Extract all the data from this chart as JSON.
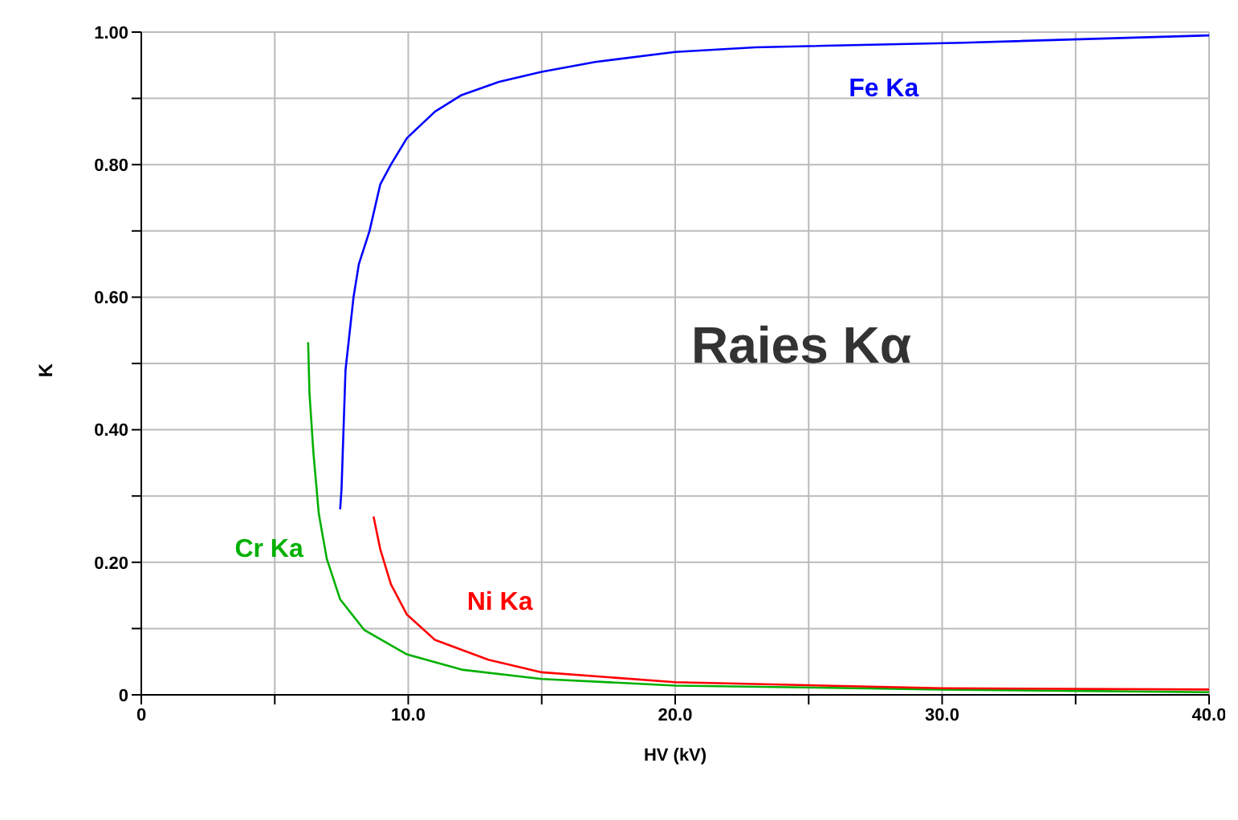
{
  "chart_data": {
    "type": "line",
    "xlabel": "HV (kV)",
    "ylabel": "K",
    "annotations": [
      "Raies Kα"
    ],
    "xlim": [
      0,
      40
    ],
    "ylim": [
      0,
      1
    ],
    "xticks": [
      0,
      {
        "value": 5,
        "label": null
      },
      {
        "value": 10,
        "label": "10.0"
      },
      {
        "value": 15,
        "label": null
      },
      {
        "value": 20,
        "label": "20.0"
      },
      {
        "value": 25,
        "label": null
      },
      {
        "value": 30,
        "label": "30.0"
      },
      {
        "value": 35,
        "label": null
      },
      {
        "value": 40,
        "label": "40.0"
      }
    ],
    "yticks": [
      0,
      {
        "value": 0.1,
        "label": null
      },
      {
        "value": 0.2,
        "label": "0.20"
      },
      {
        "value": 0.3,
        "label": null
      },
      {
        "value": 0.4,
        "label": "0.40"
      },
      {
        "value": 0.5,
        "label": null
      },
      {
        "value": 0.6,
        "label": "0.60"
      },
      {
        "value": 0.7,
        "label": null
      },
      {
        "value": 0.8,
        "label": "0.80"
      },
      {
        "value": 0.9,
        "label": null
      },
      {
        "value": 1,
        "label": "1.00"
      }
    ],
    "grid": true,
    "legend": false,
    "marker": "none",
    "line_style": "solid",
    "series": [
      {
        "name": "Fe Ka",
        "color": "#0000ff",
        "x": [
          7.45,
          7.5,
          7.65,
          7.95,
          8.15,
          8.55,
          8.95,
          9.35,
          9.95,
          11,
          12,
          13.4,
          15,
          17,
          20,
          23,
          30.8,
          40
        ],
        "values": [
          0.28,
          0.31,
          0.49,
          0.6,
          0.65,
          0.7,
          0.77,
          0.8,
          0.84,
          0.88,
          0.905,
          0.925,
          0.94,
          0.955,
          0.97,
          0.977,
          0.984,
          0.995
        ]
      },
      {
        "name": "Cr Ka",
        "color": "#00b000",
        "x": [
          6.25,
          6.3,
          6.45,
          6.65,
          6.95,
          7.45,
          8.35,
          9.95,
          12,
          15,
          20,
          30,
          40
        ],
        "values": [
          0.532,
          0.455,
          0.364,
          0.273,
          0.205,
          0.144,
          0.098,
          0.061,
          0.038,
          0.024,
          0.014,
          0.008,
          0.004
        ]
      },
      {
        "name": "Ni Ka",
        "color": "#ff0000",
        "x": [
          8.7,
          8.95,
          9.35,
          9.95,
          11,
          13,
          15,
          20,
          30,
          40
        ],
        "values": [
          0.269,
          0.22,
          0.167,
          0.121,
          0.083,
          0.053,
          0.034,
          0.019,
          0.01,
          0.008
        ]
      }
    ]
  }
}
